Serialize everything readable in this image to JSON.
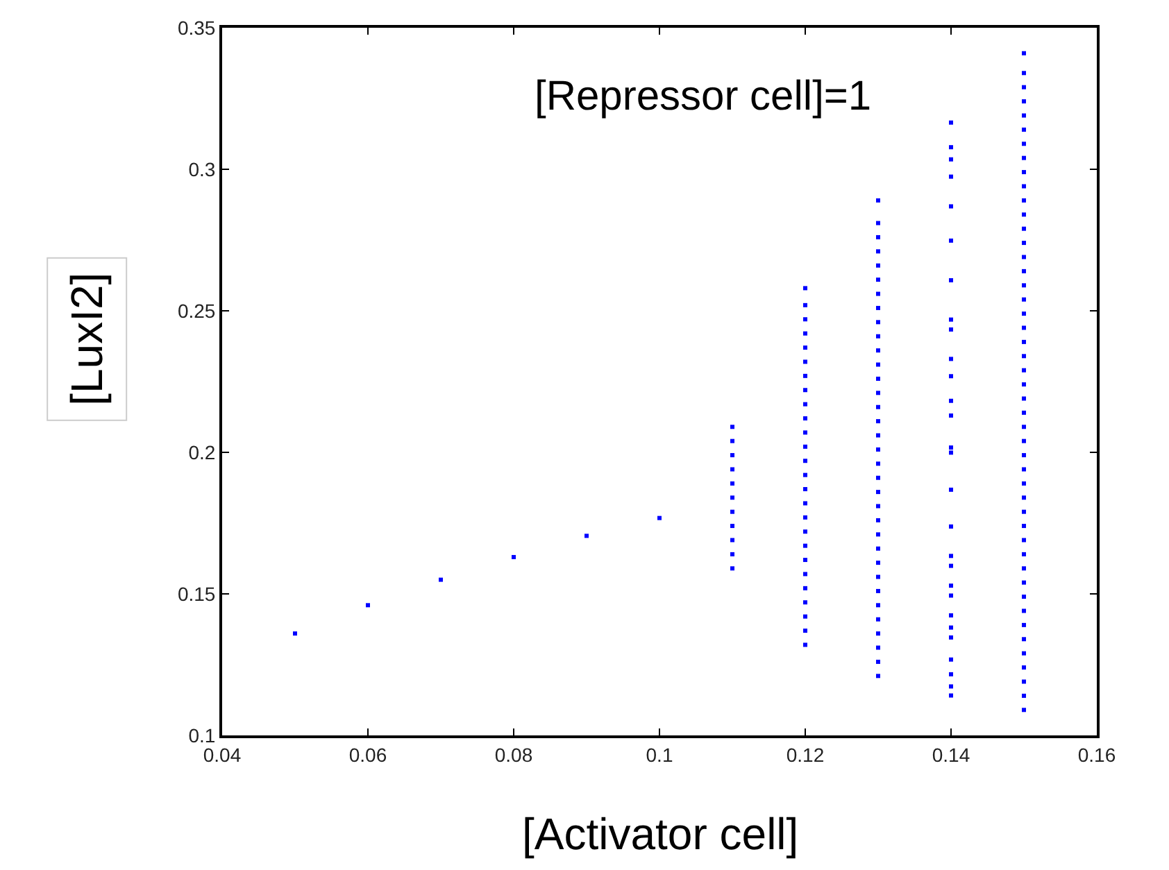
{
  "chart_data": {
    "type": "scatter",
    "xlabel": "[Activator cell]",
    "ylabel": "[LuxI2]",
    "annotations": [
      "[Repressor cell]=1"
    ],
    "xlim": [
      0.04,
      0.16
    ],
    "xticks": [
      0.04,
      0.06,
      0.08,
      0.1,
      0.12,
      0.14,
      0.16
    ],
    "ylim": [
      0.1,
      0.35
    ],
    "yticks": [
      0.1,
      0.15,
      0.2,
      0.25,
      0.3,
      0.35
    ],
    "marker": "square",
    "series": [
      {
        "color": "#0000ff",
        "x": [
          0.05,
          0.06,
          0.07,
          0.08,
          0.09,
          0.1
        ],
        "values": [
          0.136,
          0.146,
          0.155,
          0.163,
          0.1705,
          0.1768
        ]
      },
      {
        "color": "#0000ff",
        "x": [
          0.11,
          0.11,
          0.11,
          0.11,
          0.11,
          0.11,
          0.11,
          0.11,
          0.11,
          0.11,
          0.11
        ],
        "values": [
          0.159,
          0.164,
          0.169,
          0.174,
          0.179,
          0.184,
          0.189,
          0.194,
          0.199,
          0.204,
          0.209
        ]
      },
      {
        "color": "#0000ff",
        "x": [
          0.12,
          0.12,
          0.12,
          0.12,
          0.12,
          0.12,
          0.12,
          0.12,
          0.12,
          0.12,
          0.12,
          0.12,
          0.12,
          0.12,
          0.12,
          0.12,
          0.12,
          0.12,
          0.12,
          0.12,
          0.12,
          0.12,
          0.12,
          0.12,
          0.12,
          0.12
        ],
        "values": [
          0.132,
          0.137,
          0.142,
          0.147,
          0.152,
          0.157,
          0.162,
          0.167,
          0.172,
          0.177,
          0.182,
          0.187,
          0.192,
          0.197,
          0.202,
          0.207,
          0.212,
          0.217,
          0.222,
          0.227,
          0.232,
          0.237,
          0.242,
          0.247,
          0.252,
          0.258
        ]
      },
      {
        "color": "#0000ff",
        "x": [
          0.13,
          0.13,
          0.13,
          0.13,
          0.13,
          0.13,
          0.13,
          0.13,
          0.13,
          0.13,
          0.13,
          0.13,
          0.13,
          0.13,
          0.13,
          0.13,
          0.13,
          0.13,
          0.13,
          0.13,
          0.13,
          0.13,
          0.13,
          0.13,
          0.13,
          0.13,
          0.13,
          0.13,
          0.13,
          0.13,
          0.13,
          0.13,
          0.13,
          0.13
        ],
        "values": [
          0.121,
          0.126,
          0.131,
          0.136,
          0.141,
          0.146,
          0.151,
          0.156,
          0.161,
          0.166,
          0.171,
          0.176,
          0.181,
          0.186,
          0.191,
          0.196,
          0.201,
          0.206,
          0.211,
          0.216,
          0.221,
          0.226,
          0.231,
          0.236,
          0.241,
          0.246,
          0.251,
          0.256,
          0.261,
          0.266,
          0.271,
          0.276,
          0.281,
          0.289
        ]
      },
      {
        "color": "#0000ff",
        "x": [
          0.14,
          0.14,
          0.14,
          0.14,
          0.14,
          0.14,
          0.14,
          0.14,
          0.14,
          0.14,
          0.14,
          0.14,
          0.14,
          0.14,
          0.14,
          0.14,
          0.14,
          0.14,
          0.14,
          0.14,
          0.14,
          0.14,
          0.14,
          0.14,
          0.14,
          0.14,
          0.14,
          0.14
        ],
        "values": [
          0.3165,
          0.3078,
          0.3035,
          0.2974,
          0.2869,
          0.2748,
          0.2608,
          0.2469,
          0.2434,
          0.233,
          0.2269,
          0.2182,
          0.213,
          0.2017,
          0.1999,
          0.1868,
          0.1738,
          0.1634,
          0.1599,
          0.1529,
          0.1494,
          0.1424,
          0.1381,
          0.1346,
          0.1268,
          0.1216,
          0.1173,
          0.1141
        ]
      },
      {
        "color": "#0000ff",
        "x": [
          0.15,
          0.15,
          0.15,
          0.15,
          0.15,
          0.15,
          0.15,
          0.15,
          0.15,
          0.15,
          0.15,
          0.15,
          0.15,
          0.15,
          0.15,
          0.15,
          0.15,
          0.15,
          0.15,
          0.15,
          0.15,
          0.15,
          0.15,
          0.15,
          0.15,
          0.15,
          0.15,
          0.15,
          0.15,
          0.15,
          0.15,
          0.15,
          0.15,
          0.15,
          0.15,
          0.15,
          0.15,
          0.15,
          0.15,
          0.15,
          0.15,
          0.15,
          0.15,
          0.15,
          0.15,
          0.15,
          0.15
        ],
        "values": [
          0.109,
          0.114,
          0.119,
          0.124,
          0.129,
          0.134,
          0.139,
          0.144,
          0.149,
          0.154,
          0.159,
          0.164,
          0.169,
          0.174,
          0.179,
          0.184,
          0.189,
          0.194,
          0.199,
          0.204,
          0.209,
          0.214,
          0.219,
          0.224,
          0.229,
          0.234,
          0.239,
          0.244,
          0.249,
          0.254,
          0.259,
          0.264,
          0.269,
          0.274,
          0.279,
          0.284,
          0.289,
          0.294,
          0.299,
          0.304,
          0.309,
          0.314,
          0.319,
          0.324,
          0.329,
          0.334,
          0.341
        ]
      }
    ]
  }
}
